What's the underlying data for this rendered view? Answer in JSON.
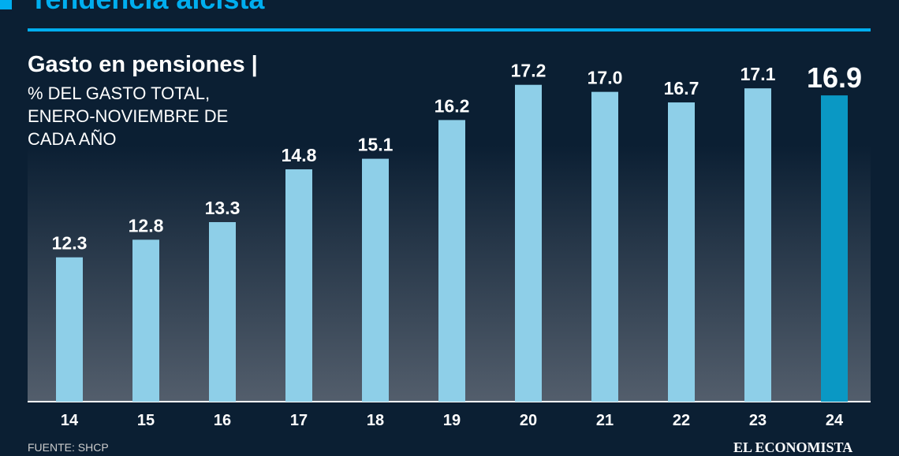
{
  "header": {
    "title": "Tendencia alcista"
  },
  "footer": {
    "source": "FUENTE: SHCP",
    "brand": "EL ECONOMISTA"
  },
  "colors": {
    "background": "#0b1f33",
    "accent": "#00aeef",
    "bar": "#8ecfe8",
    "highlight_bar": "#0a98c4"
  },
  "chart_data": {
    "type": "bar",
    "title": "Gasto en pensiones |",
    "subtitle": "% DEL GASTO TOTAL, ENERO-NOVIEMBRE DE CADA AÑO",
    "categories": [
      "14",
      "15",
      "16",
      "17",
      "18",
      "19",
      "20",
      "21",
      "22",
      "23",
      "24"
    ],
    "values": [
      12.3,
      12.8,
      13.3,
      14.8,
      15.1,
      16.2,
      17.2,
      17.0,
      16.7,
      17.1,
      16.9
    ],
    "labels": [
      "12.3",
      "12.8",
      "13.3",
      "14.8",
      "15.1",
      "16.2",
      "17.2",
      "17.0",
      "16.7",
      "17.1",
      "16.9"
    ],
    "highlight": "24",
    "ylim": [
      8.2,
      18
    ],
    "grid": false
  }
}
